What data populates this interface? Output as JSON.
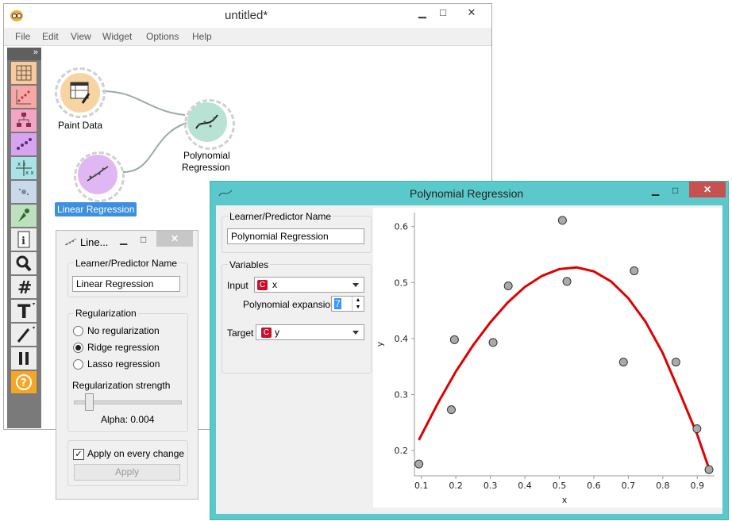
{
  "main_window": {
    "title": "untitled*",
    "menu": [
      "File",
      "Edit",
      "View",
      "Widget",
      "Options",
      "Help"
    ],
    "controls": {
      "minimize": "▁",
      "maximize": "□",
      "close": "✕"
    },
    "toolbox_toggle": "»"
  },
  "canvas": {
    "nodes": [
      {
        "label": "Paint Data"
      },
      {
        "label": "Linear Regression"
      },
      {
        "label_line1": "Polynomial",
        "label_line2": "Regression"
      }
    ],
    "selected_color": "#3d8fe0"
  },
  "linear_window": {
    "title": "Line...",
    "learner_group": "Learner/Predictor Name",
    "learner_name": "Linear Regression",
    "regularization_group": "Regularization",
    "options": [
      "No regularization",
      "Ridge regression",
      "Lasso regression"
    ],
    "selected_option": 1,
    "strength_label": "Regularization strength",
    "alpha_text": "Alpha: 0.004",
    "apply_checkbox": "Apply on every change",
    "apply_checked": true,
    "apply_button": "Apply"
  },
  "poly_window": {
    "title": "Polynomial Regression",
    "learner_group": "Learner/Predictor Name",
    "learner_name": "Polynomial Regression",
    "variables_group": "Variables",
    "input_label": "Input",
    "input_value": "x",
    "expansion_label": "Polynomial expansion:",
    "expansion_value": "7",
    "target_label": "Target",
    "target_value": "y",
    "var_badge": "C"
  },
  "chart_data": {
    "type": "scatter",
    "xlabel": "x",
    "ylabel": "y",
    "xlim": [
      0.08,
      0.95
    ],
    "ylim": [
      0.155,
      0.625
    ],
    "xticks": [
      0.1,
      0.2,
      0.3,
      0.4,
      0.5,
      0.6,
      0.7,
      0.8,
      0.9
    ],
    "yticks": [
      0.2,
      0.3,
      0.4,
      0.5,
      0.6
    ],
    "points": [
      {
        "x": 0.093,
        "y": 0.176
      },
      {
        "x": 0.187,
        "y": 0.273
      },
      {
        "x": 0.196,
        "y": 0.398
      },
      {
        "x": 0.308,
        "y": 0.393
      },
      {
        "x": 0.352,
        "y": 0.494
      },
      {
        "x": 0.509,
        "y": 0.611
      },
      {
        "x": 0.522,
        "y": 0.502
      },
      {
        "x": 0.686,
        "y": 0.358
      },
      {
        "x": 0.717,
        "y": 0.521
      },
      {
        "x": 0.838,
        "y": 0.358
      },
      {
        "x": 0.899,
        "y": 0.239
      },
      {
        "x": 0.934,
        "y": 0.166
      }
    ],
    "fit_curve": [
      {
        "x": 0.093,
        "y": 0.219
      },
      {
        "x": 0.15,
        "y": 0.287
      },
      {
        "x": 0.2,
        "y": 0.341
      },
      {
        "x": 0.25,
        "y": 0.388
      },
      {
        "x": 0.3,
        "y": 0.429
      },
      {
        "x": 0.35,
        "y": 0.464
      },
      {
        "x": 0.4,
        "y": 0.492
      },
      {
        "x": 0.45,
        "y": 0.512
      },
      {
        "x": 0.5,
        "y": 0.524
      },
      {
        "x": 0.55,
        "y": 0.527
      },
      {
        "x": 0.6,
        "y": 0.52
      },
      {
        "x": 0.65,
        "y": 0.502
      },
      {
        "x": 0.7,
        "y": 0.472
      },
      {
        "x": 0.75,
        "y": 0.43
      },
      {
        "x": 0.8,
        "y": 0.374
      },
      {
        "x": 0.85,
        "y": 0.302
      },
      {
        "x": 0.9,
        "y": 0.228
      },
      {
        "x": 0.934,
        "y": 0.168
      }
    ],
    "point_color": "#aaaaaa",
    "curve_color": "#e00000",
    "grid": false
  }
}
